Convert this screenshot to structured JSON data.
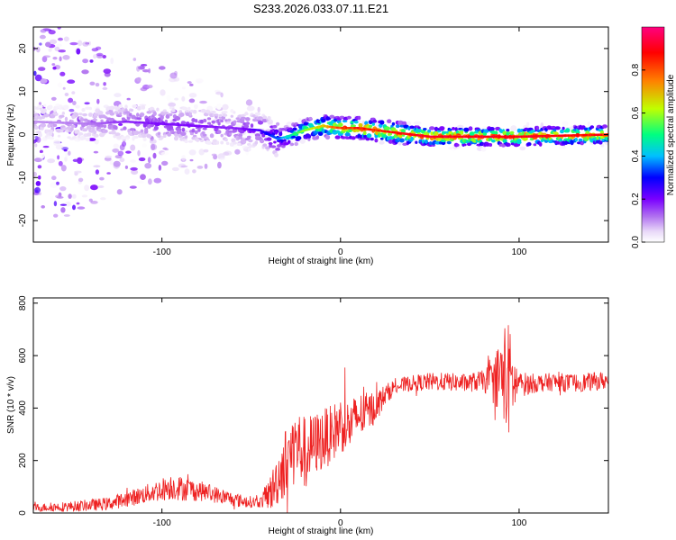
{
  "figure_title": "S233.2026.033.07.11.E21",
  "chart_data": [
    {
      "type": "heatmap",
      "title": "S233.2026.033.07.11.E21",
      "xlabel": "Height of straight line (km)",
      "ylabel": "Frequency (Hz)",
      "xlim": [
        -172,
        150
      ],
      "ylim": [
        -25,
        25
      ],
      "xticks": [
        -100,
        0,
        100
      ],
      "yticks": [
        20,
        10,
        0,
        -10,
        -20
      ],
      "colorbar": {
        "label": "Normalized spectral amplitude",
        "range": [
          0,
          1
        ],
        "ticks": [
          0,
          0.2,
          0.4,
          0.6,
          0.8
        ],
        "colormap": [
          "#ffffff",
          "#e8d8f8",
          "#b070f0",
          "#7a00ff",
          "#0000ff",
          "#00c0ff",
          "#00ff80",
          "#c0ff00",
          "#ff8000",
          "#ff0000",
          "#ff0080"
        ]
      },
      "ridge": {
        "description_points_x": [
          -172,
          -140,
          -120,
          -100,
          -80,
          -60,
          -45,
          -40,
          -35,
          -30,
          -20,
          -10,
          0,
          10,
          20,
          30,
          50,
          70,
          90,
          100,
          120,
          150
        ],
        "frequency": [
          3,
          2.5,
          3,
          2.5,
          2,
          1.5,
          1,
          0,
          -1,
          -0.5,
          1,
          2,
          1.5,
          1.5,
          1,
          0.5,
          -0.5,
          -0.5,
          -0.5,
          -0.5,
          -0.3,
          0
        ],
        "peak_amplitude": [
          0.1,
          0.12,
          0.18,
          0.2,
          0.2,
          0.18,
          0.25,
          0.32,
          0.38,
          0.45,
          0.62,
          0.72,
          0.85,
          0.9,
          0.88,
          0.92,
          0.95,
          0.96,
          0.95,
          0.95,
          0.93,
          0.9
        ]
      }
    },
    {
      "type": "line",
      "xlabel": "Height of straight line (km)",
      "ylabel": "SNR (10 * v/v)",
      "xlim": [
        -172,
        150
      ],
      "ylim": [
        0,
        820
      ],
      "xticks": [
        -100,
        0,
        100
      ],
      "yticks": [
        0,
        200,
        400,
        600,
        800
      ],
      "series": [
        {
          "name": "SNR",
          "color": "#ee2222",
          "envelope_x": [
            -172,
            -150,
            -130,
            -110,
            -95,
            -85,
            -75,
            -65,
            -55,
            -45,
            -38,
            -32,
            -25,
            -20,
            -15,
            -10,
            -5,
            0,
            5,
            10,
            15,
            20,
            25,
            30,
            40,
            50,
            60,
            70,
            80,
            85,
            90,
            93,
            95,
            97,
            100,
            110,
            120,
            130,
            140,
            150
          ],
          "envelope_mean": [
            20,
            25,
            35,
            70,
            100,
            90,
            80,
            60,
            45,
            40,
            90,
            180,
            260,
            230,
            260,
            280,
            300,
            340,
            330,
            370,
            380,
            410,
            450,
            480,
            495,
            500,
            500,
            495,
            505,
            500,
            530,
            510,
            500,
            495,
            490,
            495,
            500,
            495,
            500,
            505
          ],
          "envelope_amp": [
            15,
            20,
            25,
            35,
            50,
            45,
            35,
            30,
            25,
            20,
            80,
            130,
            150,
            140,
            120,
            120,
            110,
            110,
            100,
            90,
            80,
            60,
            40,
            30,
            30,
            35,
            35,
            35,
            40,
            80,
            150,
            250,
            200,
            120,
            50,
            35,
            35,
            35,
            35,
            35
          ]
        }
      ]
    }
  ]
}
